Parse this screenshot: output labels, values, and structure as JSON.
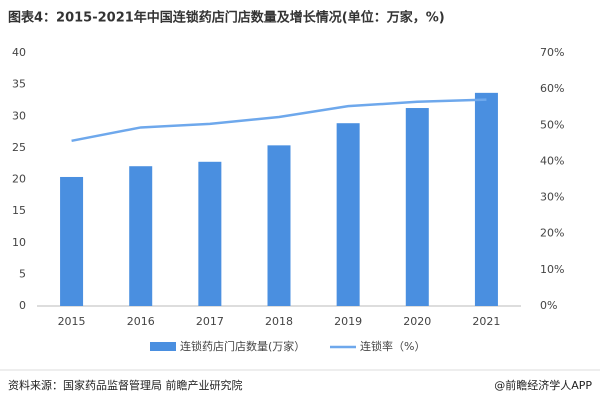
{
  "chart_data": {
    "type": "bar",
    "title": "图表4：2015-2021年中国连锁药店门店数量及增长情况(单位：万家，%)",
    "categories": [
      "2015",
      "2016",
      "2017",
      "2018",
      "2019",
      "2020",
      "2021"
    ],
    "series": [
      {
        "name": "连锁药店门店数量(万家）",
        "type": "bar",
        "color": "#4a8fe0",
        "values": [
          20.4,
          22.1,
          22.8,
          25.4,
          28.9,
          31.3,
          33.7
        ]
      },
      {
        "name": "连锁率（%）",
        "type": "line",
        "axis": "y2",
        "color": "#6ea8ec",
        "values": [
          45.7,
          49.4,
          50.4,
          52.3,
          55.3,
          56.5,
          57.1
        ]
      }
    ],
    "ylim": [
      0,
      40
    ],
    "yticks": [
      0,
      5,
      10,
      15,
      20,
      25,
      30,
      35,
      40
    ],
    "y2lim": [
      0,
      70
    ],
    "y2ticks": [
      {
        "value": 0,
        "label": "0%"
      },
      {
        "value": 10,
        "label": "10%"
      },
      {
        "value": 20,
        "label": "20%"
      },
      {
        "value": 30,
        "label": "30%"
      },
      {
        "value": 40,
        "label": "40%"
      },
      {
        "value": 50,
        "label": "50%"
      },
      {
        "value": 60,
        "label": "60%"
      },
      {
        "value": 70,
        "label": "70%"
      }
    ],
    "grid": false,
    "source": "资料来源：国家药品监督管理局 前瞻产业研究院",
    "credit": "@前瞻经济学人APP"
  }
}
